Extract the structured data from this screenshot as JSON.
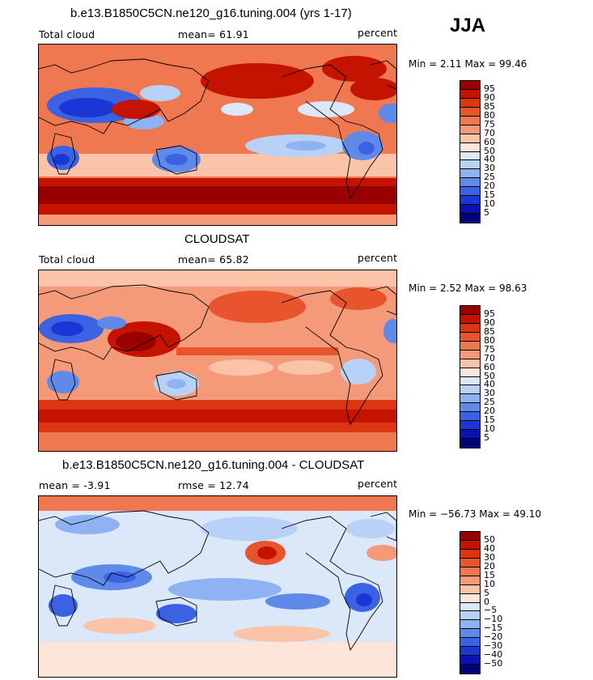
{
  "season": "JJA",
  "panels": [
    {
      "title": "b.e13.B1850C5CN.ne120_g16.tuning.004 (yrs 1-17)",
      "left_label": "Total cloud",
      "center_label": "mean=  61.91",
      "right_label": "percent",
      "minmax": "Min =   2.11  Max =  99.46",
      "colorbar": {
        "labels": [
          "95",
          "90",
          "85",
          "80",
          "75",
          "70",
          "60",
          "50",
          "40",
          "30",
          "25",
          "20",
          "15",
          "10",
          "5"
        ],
        "colors": [
          "#9b0000",
          "#c41400",
          "#dc3512",
          "#e8542e",
          "#f07850",
          "#f59a78",
          "#fbc3a8",
          "#fde6d9",
          "#dbe8fa",
          "#b8d2f7",
          "#8fb3f2",
          "#5f8aea",
          "#3a62e2",
          "#1a36d4",
          "#0a12b2",
          "#02027a"
        ]
      }
    },
    {
      "title": "CLOUDSAT",
      "left_label": "Total cloud",
      "center_label": "mean=  65.82",
      "right_label": "percent",
      "minmax": "Min =   2.52  Max =  98.63",
      "colorbar": {
        "labels": [
          "95",
          "90",
          "85",
          "80",
          "75",
          "70",
          "60",
          "50",
          "40",
          "30",
          "25",
          "20",
          "15",
          "10",
          "5"
        ],
        "colors": [
          "#9b0000",
          "#c41400",
          "#dc3512",
          "#e8542e",
          "#f07850",
          "#f59a78",
          "#fbc3a8",
          "#fde6d9",
          "#dbe8fa",
          "#b8d2f7",
          "#8fb3f2",
          "#5f8aea",
          "#3a62e2",
          "#1a36d4",
          "#0a12b2",
          "#02027a"
        ]
      }
    },
    {
      "title": "b.e13.B1850C5CN.ne120_g16.tuning.004 - CLOUDSAT",
      "left_label": "mean =   -3.91",
      "center_label": "rmse =   12.74",
      "right_label": "percent",
      "minmax": "Min = −56.73  Max =  49.10",
      "colorbar": {
        "labels": [
          "50",
          "40",
          "30",
          "20",
          "15",
          "10",
          "5",
          "0",
          "−5",
          "−10",
          "−15",
          "−20",
          "−30",
          "−40",
          "−50"
        ],
        "colors": [
          "#9b0000",
          "#c41400",
          "#dc3512",
          "#e8542e",
          "#f07850",
          "#f59a78",
          "#fbc3a8",
          "#fde6d9",
          "#dbe8fa",
          "#b8d2f7",
          "#8fb3f2",
          "#5f8aea",
          "#3a62e2",
          "#1a36d4",
          "#0a12b2",
          "#02027a"
        ]
      }
    }
  ]
}
